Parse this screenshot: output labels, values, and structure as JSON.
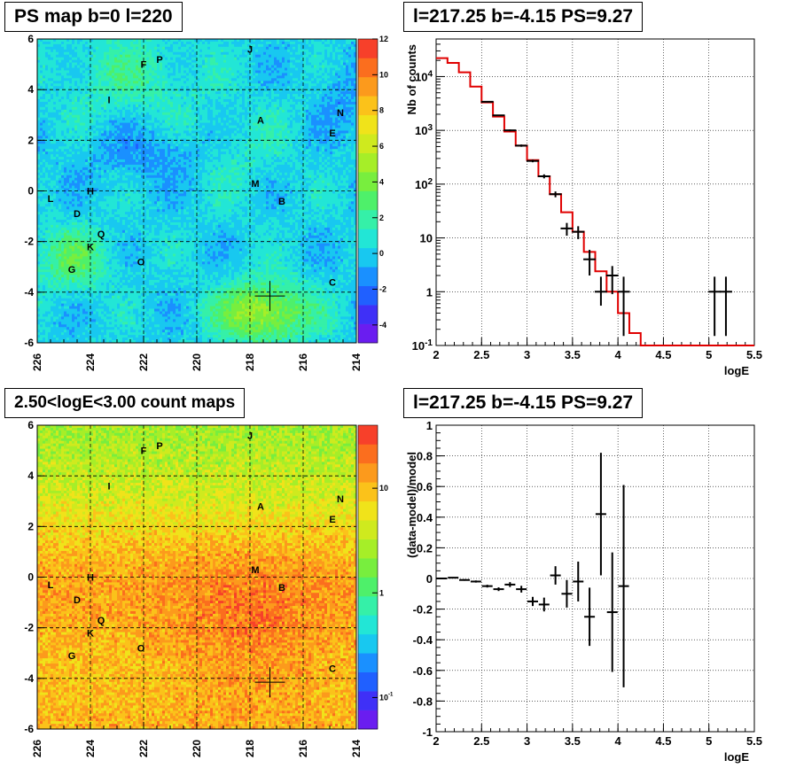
{
  "chart_data": [
    {
      "type": "heatmap",
      "title": "PS map b=0 l=220",
      "xlim": [
        226,
        214
      ],
      "ylim": [
        -6,
        6
      ],
      "x_ticks": [
        "226",
        "224",
        "222",
        "220",
        "218",
        "216",
        "214"
      ],
      "y_ticks": [
        "-6",
        "-4",
        "-2",
        "0",
        "2",
        "4",
        "6"
      ],
      "colorbar": {
        "range": [
          -5,
          12
        ],
        "ticks": [
          "12",
          "10",
          "8",
          "6",
          "4",
          "2",
          "0",
          "-2",
          "-4"
        ],
        "scale": "linear"
      },
      "source_labels": [
        {
          "text": "F",
          "l": 222,
          "b": 5
        },
        {
          "text": "P",
          "l": 221.4,
          "b": 5.2
        },
        {
          "text": "J",
          "l": 218,
          "b": 5.6
        },
        {
          "text": "I",
          "l": 223.3,
          "b": 3.6
        },
        {
          "text": "A",
          "l": 217.6,
          "b": 2.8
        },
        {
          "text": "N",
          "l": 214.6,
          "b": 3.1
        },
        {
          "text": "E",
          "l": 214.9,
          "b": 2.3
        },
        {
          "text": "M",
          "l": 217.8,
          "b": 0.3
        },
        {
          "text": "H",
          "l": 224,
          "b": 0
        },
        {
          "text": "L",
          "l": 225.5,
          "b": -0.3
        },
        {
          "text": "B",
          "l": 216.8,
          "b": -0.4
        },
        {
          "text": "D",
          "l": 224.5,
          "b": -0.9
        },
        {
          "text": "Q",
          "l": 223.6,
          "b": -1.7
        },
        {
          "text": "K",
          "l": 224,
          "b": -2.2
        },
        {
          "text": "O",
          "l": 222.1,
          "b": -2.8
        },
        {
          "text": "G",
          "l": 224.7,
          "b": -3.1
        },
        {
          "text": "C",
          "l": 214.9,
          "b": -3.6
        }
      ],
      "marker": {
        "l": 217.25,
        "b": -4.15
      }
    },
    {
      "type": "line",
      "title": "l=217.25 b=-4.15 PS=9.27",
      "xlabel": "logE",
      "ylabel": "Nb of counts",
      "xlim": [
        2,
        5.5
      ],
      "ylim": [
        0.1,
        50000
      ],
      "y_scale": "log",
      "x_ticks": [
        "2",
        "2.5",
        "3",
        "3.5",
        "4",
        "4.5",
        "5",
        "5.5"
      ],
      "y_ticks": [
        "10^-1",
        "1",
        "10",
        "10^2",
        "10^3",
        "10^4"
      ],
      "model": {
        "edges": [
          2,
          2.125,
          2.25,
          2.375,
          2.5,
          2.625,
          2.75,
          2.875,
          3,
          3.125,
          3.25,
          3.375,
          3.5,
          3.625,
          3.75,
          3.875,
          4,
          4.125,
          4.25,
          4.375,
          4.5,
          5.5
        ],
        "values": [
          22000,
          18000,
          12000,
          6500,
          3300,
          1800,
          950,
          520,
          280,
          140,
          65,
          30,
          13,
          5.5,
          2.4,
          1,
          0.4,
          0.17,
          0.1,
          0.1,
          0.1
        ]
      },
      "data": [
        {
          "x": 2.5625,
          "y": 3400,
          "lo": 3300,
          "hi": 3500
        },
        {
          "x": 2.6875,
          "y": 1900,
          "lo": 1850,
          "hi": 1950
        },
        {
          "x": 2.8125,
          "y": 1000,
          "lo": 960,
          "hi": 1040
        },
        {
          "x": 2.9375,
          "y": 520,
          "lo": 495,
          "hi": 545
        },
        {
          "x": 3.0625,
          "y": 270,
          "lo": 255,
          "hi": 285
        },
        {
          "x": 3.1875,
          "y": 140,
          "lo": 128,
          "hi": 152
        },
        {
          "x": 3.3125,
          "y": 65,
          "lo": 57,
          "hi": 73
        },
        {
          "x": 3.4375,
          "y": 15,
          "lo": 11,
          "hi": 19
        },
        {
          "x": 3.5625,
          "y": 13,
          "lo": 9.5,
          "hi": 16.5
        },
        {
          "x": 3.6875,
          "y": 4,
          "lo": 2,
          "hi": 6
        },
        {
          "x": 3.8125,
          "y": 1,
          "lo": 0.55,
          "hi": 1.9
        },
        {
          "x": 3.9375,
          "y": 2,
          "lo": 0.9,
          "hi": 3
        },
        {
          "x": 4.0625,
          "y": 1,
          "lo": 0.15,
          "hi": 1.9
        },
        {
          "x": 5.0625,
          "y": 1,
          "lo": 0.15,
          "hi": 1.9
        },
        {
          "x": 5.1875,
          "y": 1,
          "lo": 0.15,
          "hi": 1.9
        }
      ]
    },
    {
      "type": "heatmap",
      "title": "2.50<logE<3.00 count maps",
      "xlim": [
        226,
        214
      ],
      "ylim": [
        -6,
        6
      ],
      "x_ticks": [
        "226",
        "224",
        "222",
        "220",
        "218",
        "216",
        "214"
      ],
      "y_ticks": [
        "-6",
        "-4",
        "-2",
        "0",
        "2",
        "4",
        "6"
      ],
      "colorbar": {
        "range": [
          0.05,
          40
        ],
        "ticks": [
          "10",
          "1",
          "10^-1"
        ],
        "scale": "log"
      },
      "source_labels": "same as PS map",
      "marker": {
        "l": 217.25,
        "b": -4.15
      }
    },
    {
      "type": "scatter",
      "title": "l=217.25 b=-4.15 PS=9.27",
      "xlabel": "logE",
      "ylabel": "(data-model)/model",
      "xlim": [
        2,
        5.5
      ],
      "ylim": [
        -1,
        1
      ],
      "x_ticks": [
        "2",
        "2.5",
        "3",
        "3.5",
        "4",
        "4.5",
        "5",
        "5.5"
      ],
      "y_ticks": [
        "-1",
        "-0.8",
        "-0.6",
        "-0.4",
        "-0.2",
        "0",
        "0.2",
        "0.4",
        "0.6",
        "0.8",
        "1"
      ],
      "data": [
        {
          "x": 2.0625,
          "y": 0.0,
          "err": 0.003
        },
        {
          "x": 2.1875,
          "y": 0.005,
          "err": 0.004
        },
        {
          "x": 2.3125,
          "y": -0.01,
          "err": 0.005
        },
        {
          "x": 2.4375,
          "y": -0.02,
          "err": 0.007
        },
        {
          "x": 2.5625,
          "y": -0.05,
          "err": 0.009
        },
        {
          "x": 2.6875,
          "y": -0.07,
          "err": 0.012
        },
        {
          "x": 2.8125,
          "y": -0.04,
          "err": 0.016
        },
        {
          "x": 2.9375,
          "y": -0.07,
          "err": 0.022
        },
        {
          "x": 3.0625,
          "y": -0.15,
          "err": 0.03
        },
        {
          "x": 3.1875,
          "y": -0.17,
          "err": 0.045
        },
        {
          "x": 3.3125,
          "y": 0.02,
          "err": 0.06
        },
        {
          "x": 3.4375,
          "y": -0.1,
          "err": 0.09
        },
        {
          "x": 3.5625,
          "y": -0.02,
          "err": 0.13
        },
        {
          "x": 3.6875,
          "y": -0.25,
          "err": 0.19
        },
        {
          "x": 3.8125,
          "y": 0.42,
          "err": 0.4
        },
        {
          "x": 3.9375,
          "y": -0.22,
          "err": 0.39
        },
        {
          "x": 4.0625,
          "y": -0.05,
          "err": 0.66
        }
      ]
    }
  ]
}
